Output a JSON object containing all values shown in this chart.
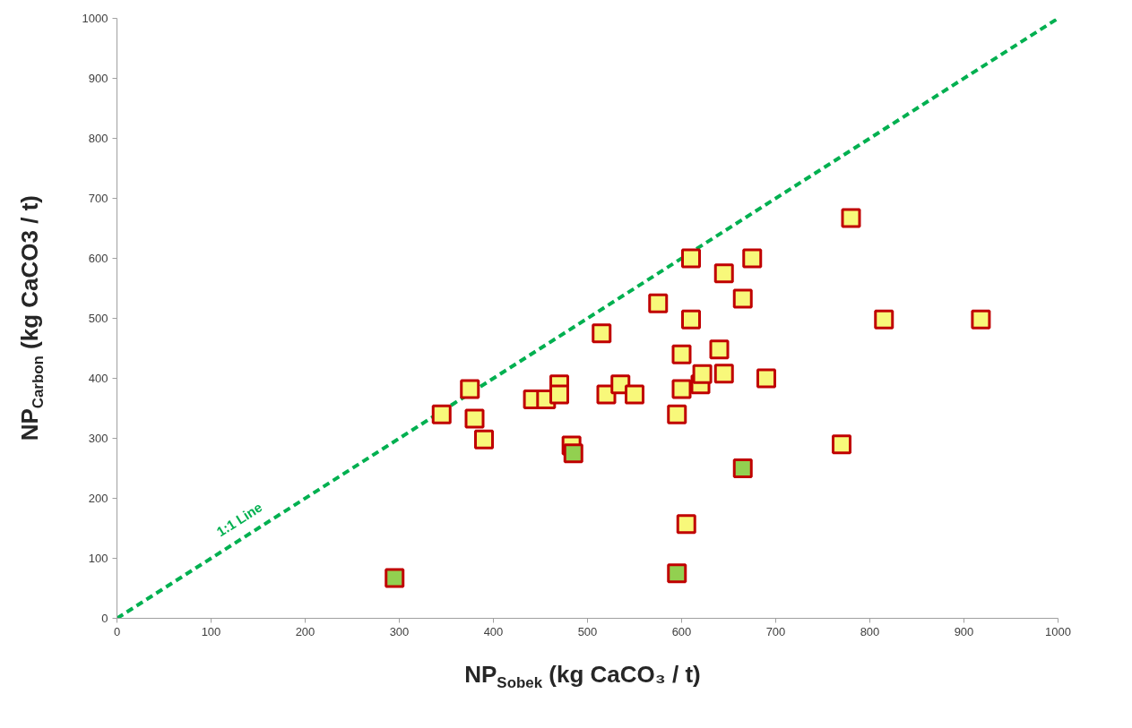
{
  "chart_data": {
    "type": "scatter",
    "xlabel": "NP$_{Sobek}$ (kg CaCO₃ / t)",
    "ylabel": "NP$_{Carbon}$ (kg CaCO3 / t)",
    "xlim": [
      0,
      1000
    ],
    "ylim": [
      0,
      1000
    ],
    "xticks": [
      0,
      100,
      200,
      300,
      400,
      500,
      600,
      700,
      800,
      900,
      1000
    ],
    "yticks": [
      0,
      100,
      200,
      300,
      400,
      500,
      600,
      700,
      800,
      900,
      1000
    ],
    "grid": false,
    "marker": "square",
    "series": [
      {
        "type": "line",
        "color": "#00b050",
        "line_style": "dashed",
        "marker": "none",
        "x": [
          0,
          1000
        ],
        "values": [
          0,
          1000
        ]
      },
      {
        "color": "#f8f87a",
        "x": [
          345,
          375,
          380,
          390,
          442,
          456,
          470,
          470,
          483,
          515,
          520,
          535,
          550,
          575,
          595,
          600,
          600,
          610,
          610,
          620,
          622,
          645,
          640,
          645,
          665,
          675,
          690,
          605,
          770,
          780,
          815,
          918
        ],
        "values": [
          340,
          382,
          333,
          298,
          365,
          365,
          390,
          373,
          288,
          475,
          373,
          390,
          373,
          525,
          340,
          440,
          382,
          600,
          498,
          390,
          407,
          575,
          448,
          408,
          533,
          600,
          400,
          157,
          290,
          667,
          498,
          498
        ]
      },
      {
        "color": "#92d050",
        "x": [
          295,
          485,
          595,
          665
        ],
        "values": [
          67,
          275,
          75,
          250
        ]
      }
    ],
    "annotations": [
      "1:1 Line"
    ]
  }
}
